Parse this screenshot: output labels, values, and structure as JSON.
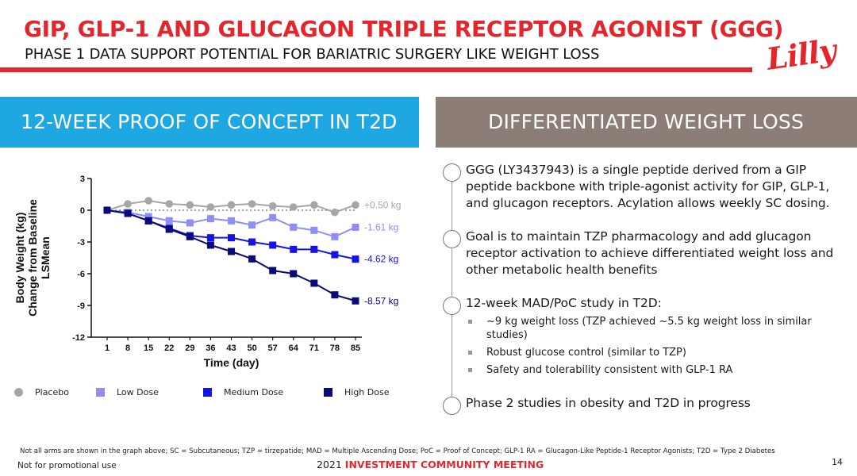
{
  "header": {
    "title": "GIP, GLP-1 AND GLUCAGON TRIPLE RECEPTOR AGONIST (GGG)",
    "subtitle": "PHASE 1 DATA SUPPORT POTENTIAL FOR BARIATRIC SURGERY LIKE WEIGHT LOSS",
    "logo_text": "Lilly",
    "accent_color": "#e4262c"
  },
  "left_panel": {
    "banner": "12-WEEK PROOF OF CONCEPT IN T2D",
    "banner_color": "#1fa7e1"
  },
  "right_panel": {
    "banner": "DIFFERENTIATED WEIGHT LOSS",
    "banner_color": "#8c7e77",
    "bullets": [
      "GGG (LY3437943) is a single peptide derived from a GIP peptide backbone with triple-agonist activity for GIP, GLP-1, and glucagon receptors. Acylation allows weekly SC dosing.",
      "Goal is to maintain TZP pharmacology and add glucagon receptor activation to achieve differentiated weight loss and other metabolic health benefits",
      "12-week MAD/PoC study in T2D:",
      "Phase 2 studies in obesity and T2D in progress"
    ],
    "sub_bullets": [
      "~9 kg weight loss (TZP achieved ~5.5 kg weight loss in similar studies)",
      "Robust glucose control (similar to TZP)",
      "Safety and tolerability consistent with GLP-1 RA"
    ]
  },
  "chart_data": {
    "type": "line",
    "title": "",
    "xlabel": "Time (day)",
    "ylabel": "Body Weight (kg) Change from Baseline LSMean",
    "ylabel_lines": [
      "Body Weight (kg)",
      "Change from Baseline",
      "LSMean"
    ],
    "x": [
      1,
      8,
      15,
      22,
      29,
      36,
      43,
      50,
      57,
      64,
      71,
      78,
      85
    ],
    "ylim": [
      -12,
      3
    ],
    "yticks": [
      3,
      0,
      -3,
      -6,
      -9,
      -12
    ],
    "grid": false,
    "legend_position": "bottom",
    "series": [
      {
        "name": "Placebo",
        "color": "#a6a6a6",
        "marker": "circle",
        "end_label": "+0.50 kg",
        "values": [
          0,
          0.6,
          0.9,
          0.6,
          0.5,
          0.3,
          0.5,
          0.6,
          0.4,
          0.3,
          0.5,
          -0.2,
          0.5
        ]
      },
      {
        "name": "Low Dose",
        "color": "#8e8ef5",
        "marker": "square",
        "end_label": "-1.61 kg",
        "values": [
          0,
          -0.2,
          -0.6,
          -1.0,
          -1.2,
          -0.8,
          -1.0,
          -1.4,
          -0.7,
          -1.6,
          -1.9,
          -2.5,
          -1.61
        ]
      },
      {
        "name": "Medium Dose",
        "color": "#1414e6",
        "marker": "square",
        "end_label": "-4.62 kg",
        "values": [
          0,
          -0.3,
          -1.0,
          -1.7,
          -2.4,
          -2.6,
          -2.6,
          -3.0,
          -3.3,
          -3.7,
          -3.7,
          -4.2,
          -4.62
        ]
      },
      {
        "name": "High Dose",
        "color": "#0a0a7a",
        "marker": "square",
        "end_label": "-8.57 kg",
        "values": [
          0,
          -0.3,
          -1.0,
          -1.8,
          -2.5,
          -3.3,
          -3.9,
          -4.6,
          -5.7,
          -6.0,
          -6.9,
          -8.0,
          -8.57
        ]
      }
    ]
  },
  "footer": {
    "footnote": "Not all arms are shown in the graph above; SC = Subcutaneous; TZP = tirzepatide; MAD = Multiple Ascending Dose; PoC = Proof of Concept; GLP-1 RA = Glucagon-Like Peptide-1 Receptor Agonists; T2D = Type 2 Diabetes",
    "not_promotional": "Not for promotional use",
    "meeting_year": "2021",
    "meeting_name": "INVESTMENT COMMUNITY MEETING",
    "page_number": "14"
  }
}
